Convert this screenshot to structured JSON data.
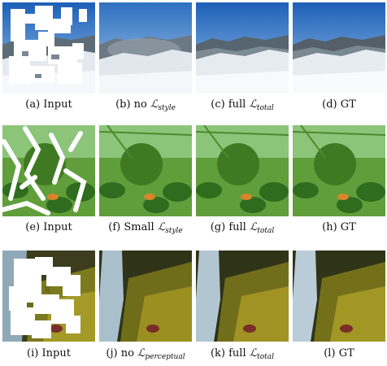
{
  "rows": [
    {
      "scene": "snowy-mountain",
      "panels": [
        {
          "tag": "(a)",
          "text": "Input",
          "loss": ""
        },
        {
          "tag": "(b)",
          "text": "no",
          "loss": "style"
        },
        {
          "tag": "(c)",
          "text": "full",
          "loss": "total"
        },
        {
          "tag": "(d)",
          "text": "GT",
          "loss": ""
        }
      ]
    },
    {
      "scene": "green-fruit-foliage",
      "panels": [
        {
          "tag": "(e)",
          "text": "Input",
          "loss": ""
        },
        {
          "tag": "(f)",
          "text": "Small",
          "loss": "style"
        },
        {
          "tag": "(g)",
          "text": "full",
          "loss": "total"
        },
        {
          "tag": "(h)",
          "text": "GT",
          "loss": ""
        }
      ]
    },
    {
      "scene": "mossy-waterfall",
      "panels": [
        {
          "tag": "(i)",
          "text": "Input",
          "loss": ""
        },
        {
          "tag": "(j)",
          "text": "no",
          "loss": "perceptual"
        },
        {
          "tag": "(k)",
          "text": "full",
          "loss": "total"
        },
        {
          "tag": "(l)",
          "text": "GT",
          "loss": ""
        }
      ]
    }
  ],
  "loss_symbol": "ℒ"
}
